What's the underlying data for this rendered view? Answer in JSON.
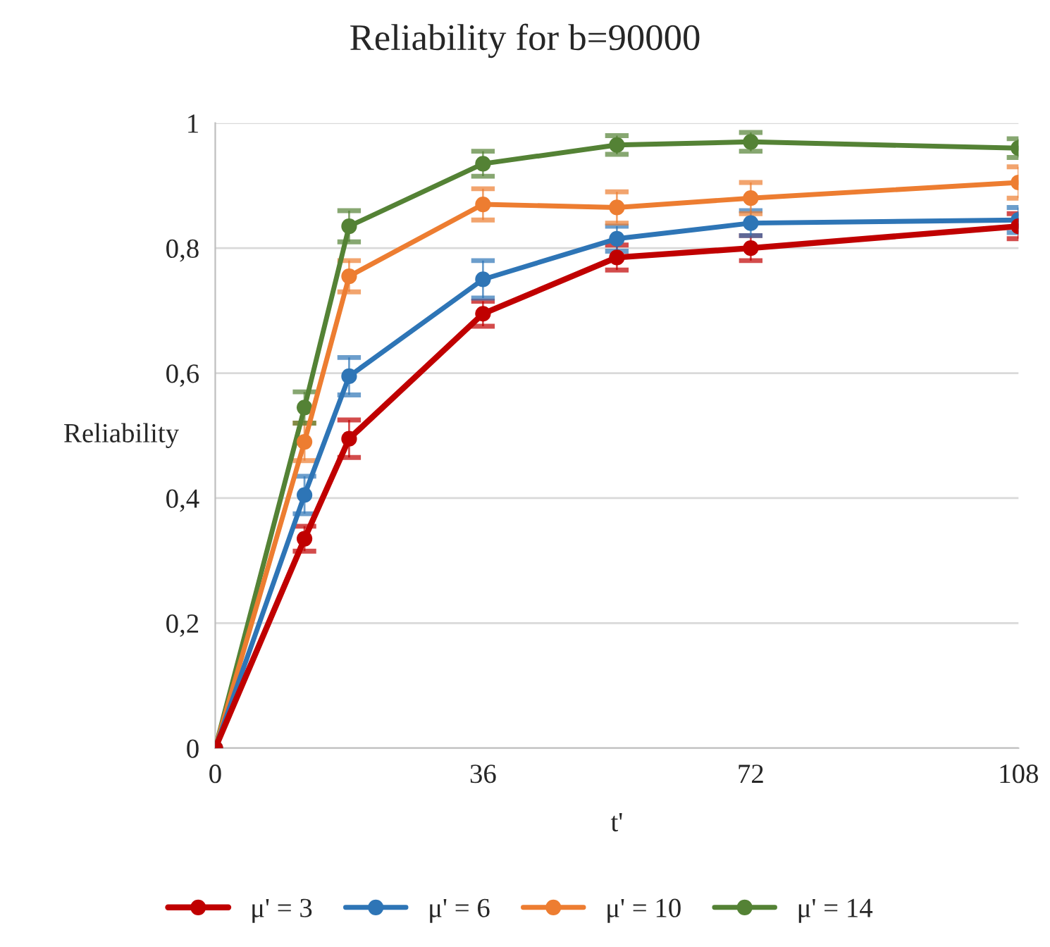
{
  "chart_data": {
    "type": "line",
    "title": "Reliability for b=90000",
    "xlabel": "t'",
    "ylabel": "Reliability",
    "x": [
      0,
      12,
      18,
      36,
      54,
      72,
      108
    ],
    "xlim": [
      0,
      108
    ],
    "xticks": [
      0,
      36,
      72,
      108
    ],
    "ylim": [
      0,
      1
    ],
    "yticks": [
      {
        "value": 0,
        "label": "0"
      },
      {
        "value": 0.2,
        "label": "0,2"
      },
      {
        "value": 0.4,
        "label": "0,4"
      },
      {
        "value": 0.6,
        "label": "0,6"
      },
      {
        "value": 0.8,
        "label": "0,8"
      },
      {
        "value": 1,
        "label": "1"
      }
    ],
    "grid": "y",
    "legend": "bottom",
    "marker": "circle",
    "line_style": "solid",
    "series": [
      {
        "name": "μ' = 3",
        "color": "#c00000",
        "values": [
          0,
          0.335,
          0.495,
          0.695,
          0.785,
          0.8,
          0.835
        ],
        "errors": [
          null,
          0.02,
          0.03,
          0.02,
          0.02,
          0.02,
          0.02
        ]
      },
      {
        "name": "μ' = 6",
        "color": "#2e75b6",
        "values": [
          0,
          0.405,
          0.595,
          0.75,
          0.815,
          0.84,
          0.845
        ],
        "errors": [
          null,
          0.03,
          0.03,
          0.03,
          0.02,
          0.02,
          0.02
        ]
      },
      {
        "name": "μ' = 10",
        "color": "#ed7d31",
        "values": [
          0,
          0.49,
          0.755,
          0.87,
          0.865,
          0.88,
          0.905
        ],
        "errors": [
          null,
          0.03,
          0.025,
          0.025,
          0.025,
          0.025,
          0.025
        ]
      },
      {
        "name": "μ' = 14",
        "color": "#548235",
        "values": [
          0,
          0.545,
          0.835,
          0.935,
          0.965,
          0.97,
          0.96
        ],
        "errors": [
          null,
          0.025,
          0.025,
          0.02,
          0.015,
          0.015,
          0.015
        ]
      }
    ]
  }
}
